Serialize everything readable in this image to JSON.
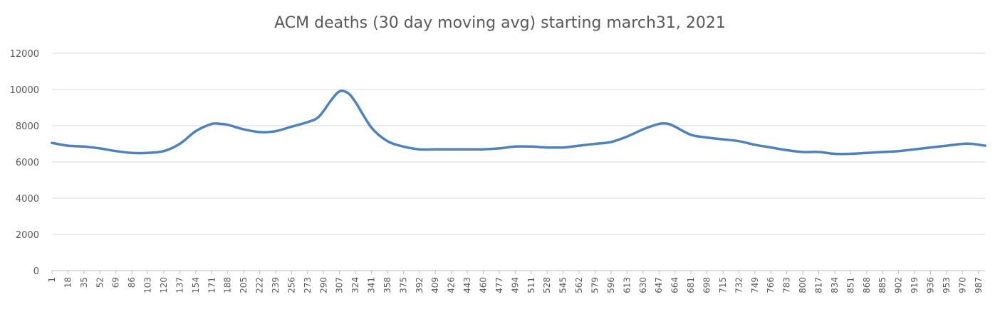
{
  "chart_data": {
    "type": "line",
    "title": "ACM deaths (30 day moving avg) starting march31, 2021",
    "xlabel": "",
    "ylabel": "",
    "ylim": [
      0,
      12000
    ],
    "yticks": [
      0,
      2000,
      4000,
      6000,
      8000,
      10000,
      12000
    ],
    "xlim": [
      1,
      994
    ],
    "xticks": [
      1,
      18,
      35,
      52,
      69,
      86,
      103,
      120,
      137,
      154,
      171,
      188,
      205,
      222,
      239,
      256,
      273,
      290,
      307,
      324,
      341,
      358,
      375,
      392,
      409,
      426,
      443,
      460,
      477,
      494,
      511,
      528,
      545,
      562,
      579,
      596,
      613,
      630,
      647,
      664,
      681,
      698,
      715,
      732,
      749,
      766,
      783,
      800,
      817,
      834,
      851,
      868,
      885,
      902,
      919,
      936,
      953,
      970,
      987
    ],
    "grid": true,
    "legend": "none",
    "series": [
      {
        "color": "#4f81bd",
        "x": [
          1,
          18,
          35,
          52,
          69,
          86,
          103,
          120,
          137,
          154,
          171,
          180,
          188,
          205,
          222,
          239,
          256,
          273,
          285,
          298,
          307,
          316,
          324,
          341,
          358,
          375,
          392,
          409,
          426,
          443,
          460,
          477,
          494,
          511,
          528,
          545,
          562,
          579,
          596,
          613,
          630,
          647,
          657,
          664,
          681,
          698,
          715,
          732,
          749,
          766,
          783,
          800,
          817,
          834,
          851,
          868,
          885,
          902,
          919,
          936,
          953,
          970,
          980,
          994
        ],
        "values": [
          7050,
          6900,
          6850,
          6750,
          6600,
          6500,
          6500,
          6600,
          7000,
          7700,
          8100,
          8100,
          8050,
          7800,
          7650,
          7700,
          7950,
          8200,
          8500,
          9400,
          9900,
          9800,
          9300,
          7900,
          7150,
          6850,
          6700,
          6700,
          6700,
          6700,
          6700,
          6750,
          6850,
          6850,
          6800,
          6800,
          6900,
          7000,
          7100,
          7400,
          7800,
          8100,
          8100,
          7950,
          7500,
          7350,
          7250,
          7150,
          6950,
          6800,
          6650,
          6550,
          6550,
          6450,
          6450,
          6500,
          6550,
          6600,
          6700,
          6800,
          6900,
          7000,
          7000,
          6900
        ]
      }
    ]
  }
}
